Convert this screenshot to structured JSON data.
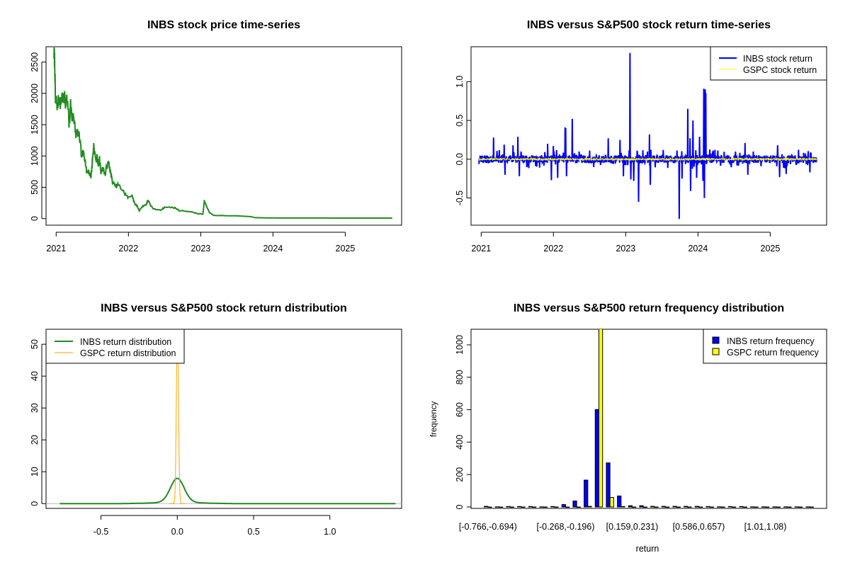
{
  "colors": {
    "inbs_price": "#228B22",
    "inbs_return": "#0000FF",
    "gspc_return": "#FFFF00",
    "inbs_density": "#228B22",
    "gspc_density": "#FFA500",
    "inbs_bar": "#0000FF",
    "gspc_bar": "#FFFF00"
  },
  "chart_data": [
    {
      "type": "line",
      "title": "INBS stock price time-series",
      "xlabel": "",
      "ylabel": "",
      "xlim": [
        2020.86,
        2025.78
      ],
      "ylim": [
        -105,
        2745
      ],
      "xticks": [
        {
          "v": 2021,
          "label": "2021"
        },
        {
          "v": 2022,
          "label": "2022"
        },
        {
          "v": 2023,
          "label": "2023"
        },
        {
          "v": 2024,
          "label": "2024"
        },
        {
          "v": 2025,
          "label": "2025"
        }
      ],
      "yticks": [
        {
          "v": 0,
          "label": "0"
        },
        {
          "v": 500,
          "label": "500"
        },
        {
          "v": 1000,
          "label": "1000"
        },
        {
          "v": 1500,
          "label": "1500"
        },
        {
          "v": 2000,
          "label": "2000"
        },
        {
          "v": 2500,
          "label": "2500"
        }
      ],
      "series": [
        {
          "name": "INBS price",
          "x": [
            2020.97,
            2020.98,
            2020.99,
            2021.0,
            2021.02,
            2021.04,
            2021.06,
            2021.08,
            2021.1,
            2021.12,
            2021.13,
            2021.15,
            2021.17,
            2021.18,
            2021.2,
            2021.22,
            2021.24,
            2021.25,
            2021.27,
            2021.3,
            2021.33,
            2021.35,
            2021.38,
            2021.4,
            2021.42,
            2021.45,
            2021.48,
            2021.5,
            2021.52,
            2021.55,
            2021.57,
            2021.58,
            2021.6,
            2021.62,
            2021.65,
            2021.68,
            2021.7,
            2021.73,
            2021.75,
            2021.78,
            2021.82,
            2021.86,
            2021.9,
            2021.95,
            2022.0,
            2022.05,
            2022.08,
            2022.12,
            2022.15,
            2022.2,
            2022.25,
            2022.27,
            2022.3,
            2022.35,
            2022.45,
            2022.5,
            2022.6,
            2022.65,
            2022.7,
            2022.8,
            2022.9,
            2022.95,
            2023.03,
            2023.05,
            2023.08,
            2023.12,
            2023.18,
            2023.5,
            2023.7,
            2023.75,
            2023.9,
            2024.0,
            2024.2,
            2025.65
          ],
          "y": [
            2640,
            2520,
            1850,
            1900,
            1780,
            1950,
            1820,
            1980,
            1880,
            1950,
            1850,
            1900,
            1700,
            1450,
            1850,
            1600,
            1650,
            1550,
            1350,
            1380,
            1250,
            1000,
            1050,
            950,
            750,
            760,
            650,
            900,
            1180,
            900,
            1000,
            850,
            950,
            750,
            800,
            700,
            850,
            880,
            750,
            580,
            520,
            540,
            480,
            400,
            330,
            380,
            250,
            200,
            130,
            200,
            230,
            300,
            220,
            150,
            140,
            180,
            180,
            170,
            130,
            120,
            100,
            80,
            70,
            280,
            200,
            100,
            50,
            45,
            30,
            15,
            12,
            10,
            9,
            8
          ]
        }
      ]
    },
    {
      "type": "line",
      "title": "INBS versus S&P500 stock return time-series",
      "xlim": [
        2020.86,
        2025.78
      ],
      "ylim": [
        -0.85,
        1.45
      ],
      "xticks": [
        {
          "v": 2021,
          "label": "2021"
        },
        {
          "v": 2022,
          "label": "2022"
        },
        {
          "v": 2023,
          "label": "2023"
        },
        {
          "v": 2024,
          "label": "2024"
        },
        {
          "v": 2025,
          "label": "2025"
        }
      ],
      "yticks": [
        {
          "v": -0.5,
          "label": "-0.5"
        },
        {
          "v": 0,
          "label": "0.0"
        },
        {
          "v": 0.5,
          "label": "0.5"
        },
        {
          "v": 1.0,
          "label": "1.0"
        }
      ],
      "legend": {
        "position": "top-right",
        "entries": [
          "INBS stock return",
          "GSPC stock return"
        ]
      },
      "x_range": [
        2020.97,
        2025.64
      ],
      "series": [
        {
          "name": "INBS stock return",
          "typical_abs": 0.05,
          "spikes": [
            [
              2021.17,
              0.28
            ],
            [
              2021.32,
              0.19
            ],
            [
              2021.33,
              -0.2
            ],
            [
              2021.44,
              0.18
            ],
            [
              2021.51,
              0.29
            ],
            [
              2021.53,
              -0.22
            ],
            [
              2021.92,
              0.2
            ],
            [
              2021.97,
              -0.27
            ],
            [
              2022.0,
              0.17
            ],
            [
              2022.06,
              -0.24
            ],
            [
              2022.16,
              0.41
            ],
            [
              2022.17,
              0.4
            ],
            [
              2022.18,
              -0.22
            ],
            [
              2022.26,
              0.52
            ],
            [
              2022.76,
              0.27
            ],
            [
              2022.92,
              0.25
            ],
            [
              2022.97,
              -0.22
            ],
            [
              2023.06,
              1.37
            ],
            [
              2023.07,
              -0.26
            ],
            [
              2023.11,
              -0.28
            ],
            [
              2023.18,
              -0.55
            ],
            [
              2023.33,
              0.32
            ],
            [
              2023.34,
              -0.33
            ],
            [
              2023.74,
              -0.77
            ],
            [
              2023.78,
              -0.25
            ],
            [
              2023.86,
              0.65
            ],
            [
              2023.89,
              0.27
            ],
            [
              2023.9,
              -0.41
            ],
            [
              2023.93,
              0.5
            ],
            [
              2023.98,
              -0.24
            ],
            [
              2024.02,
              0.29
            ],
            [
              2024.07,
              -0.28
            ],
            [
              2024.08,
              0.91
            ],
            [
              2024.09,
              -0.5
            ],
            [
              2024.1,
              0.9
            ],
            [
              2024.11,
              0.85
            ],
            [
              2024.65,
              0.21
            ],
            [
              2024.69,
              -0.2
            ],
            [
              2025.1,
              0.18
            ],
            [
              2025.13,
              -0.23
            ],
            [
              2025.22,
              -0.19
            ],
            [
              2025.55,
              -0.17
            ]
          ]
        },
        {
          "name": "GSPC stock return",
          "typical_abs": 0.012,
          "spikes": []
        }
      ]
    },
    {
      "type": "line",
      "title": "INBS versus S&P500 stock return distribution",
      "xlim": [
        -0.86,
        1.47
      ],
      "ylim": [
        -1.5,
        54.7
      ],
      "xticks": [
        {
          "v": -0.5,
          "label": "-0.5"
        },
        {
          "v": 0,
          "label": "0.0"
        },
        {
          "v": 0.5,
          "label": "0.5"
        },
        {
          "v": 1.0,
          "label": "1.0"
        }
      ],
      "yticks": [
        {
          "v": 0,
          "label": "0"
        },
        {
          "v": 10,
          "label": "10"
        },
        {
          "v": 20,
          "label": "20"
        },
        {
          "v": 30,
          "label": "30"
        },
        {
          "v": 40,
          "label": "40"
        },
        {
          "v": 50,
          "label": "50"
        }
      ],
      "legend": {
        "position": "top-left",
        "entries": [
          "INBS return distribution",
          "GSPC return distribution"
        ]
      },
      "series": [
        {
          "name": "INBS return distribution",
          "x_range": [
            -0.77,
            1.43
          ],
          "peak": 7.9,
          "mixture": [
            [
              0.85,
              0.0,
              0.045
            ],
            [
              0.15,
              0.0,
              0.15
            ]
          ]
        },
        {
          "name": "GSPC return distribution",
          "x_range": [
            -0.05,
            0.05
          ],
          "peak": 58,
          "mixture": [
            [
              1.0,
              0.001,
              0.0069
            ]
          ]
        }
      ]
    },
    {
      "type": "bar",
      "title": "INBS versus S&P500 return frequency distribution",
      "xlabel": "return",
      "ylabel": "frequency",
      "ylim": [
        0,
        1096
      ],
      "yticks": [
        {
          "v": 0,
          "label": "0"
        },
        {
          "v": 200,
          "label": "200"
        },
        {
          "v": 400,
          "label": "400"
        },
        {
          "v": 600,
          "label": "600"
        },
        {
          "v": 800,
          "label": "800"
        },
        {
          "v": 1000,
          "label": "1000"
        }
      ],
      "xtick_labels": [
        {
          "bin": 0,
          "label": "[-0.766,-0.694)"
        },
        {
          "bin": 7,
          "label": "[-0.268,-0.196)"
        },
        {
          "bin": 13,
          "label": "[0.159,0.231)"
        },
        {
          "bin": 19,
          "label": "[0.586,0.657)"
        },
        {
          "bin": 25,
          "label": "[1.01,1.08)"
        }
      ],
      "legend": {
        "position": "top-right",
        "entries": [
          "INBS return frequency",
          "GSPC return frequency"
        ]
      },
      "series": [
        {
          "name": "INBS return frequency",
          "values": [
            4,
            1,
            3,
            3,
            3,
            1,
            3,
            15,
            37,
            166,
            601,
            272,
            68,
            8,
            8,
            4,
            4,
            4,
            4,
            4,
            3,
            1,
            3,
            3,
            1,
            1,
            1,
            1,
            1,
            1
          ]
        },
        {
          "name": "GSPC return frequency",
          "values": [
            0,
            0,
            0,
            0,
            0,
            0,
            0,
            0,
            0,
            4,
            1135,
            59,
            3,
            0,
            0,
            0,
            0,
            0,
            0,
            0,
            0,
            0,
            0,
            0,
            0,
            0,
            0,
            0,
            0,
            0
          ]
        }
      ]
    }
  ]
}
